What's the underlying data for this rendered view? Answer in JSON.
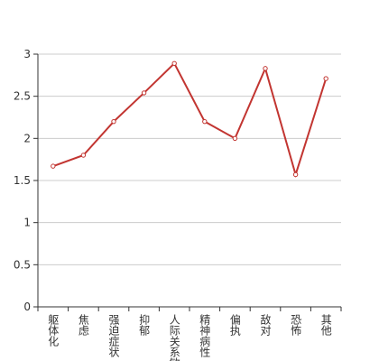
{
  "chart_data": {
    "type": "line",
    "categories": [
      "躯体化",
      "焦虑",
      "强迫症状",
      "抑郁",
      "人际关系敏感",
      "精神病性",
      "偏执",
      "敌对",
      "恐怖",
      "其他"
    ],
    "values": [
      1.67,
      1.8,
      2.2,
      2.54,
      2.89,
      2.2,
      2.0,
      2.83,
      1.57,
      2.71
    ],
    "color": "#c23531",
    "ylim": [
      0,
      3
    ],
    "yticks": [
      0,
      0.5,
      1,
      1.5,
      2,
      2.5,
      3
    ],
    "grid": true
  }
}
